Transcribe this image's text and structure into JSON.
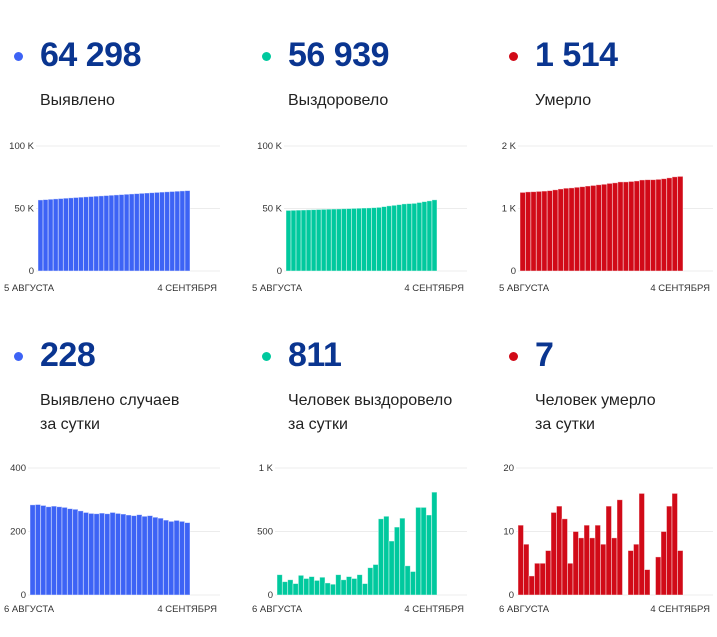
{
  "colors": {
    "cases": "#3d63f5",
    "recovered": "#00c99e",
    "deaths": "#d10a18",
    "number": "#0a3590"
  },
  "cards": [
    {
      "id": "total-cases",
      "value": "64 298",
      "label": "Выявлено",
      "color": "#3d63f5"
    },
    {
      "id": "total-recovered",
      "value": "56 939",
      "label": "Выздоровело",
      "color": "#00c99e"
    },
    {
      "id": "total-deaths",
      "value": "1 514",
      "label": "Умерло",
      "color": "#d10a18"
    },
    {
      "id": "daily-cases",
      "value": "228",
      "label": "Выявлено случаев",
      "label2": "за сутки",
      "color": "#3d63f5"
    },
    {
      "id": "daily-recovered",
      "value": "811",
      "label": "Человек выздоровело",
      "label2": "за сутки",
      "color": "#00c99e"
    },
    {
      "id": "daily-deaths",
      "value": "7",
      "label": "Человек умерло",
      "label2": "за сутки",
      "color": "#d10a18"
    }
  ],
  "chart_data": [
    {
      "type": "bar",
      "x_start": "5 АВГУСТА",
      "x_end": "4 СЕНТЯБРЯ",
      "ylim": [
        0,
        100000
      ],
      "yticks": [
        {
          "v": 0,
          "t": "0"
        },
        {
          "v": 50000,
          "t": "50 K"
        },
        {
          "v": 100000,
          "t": "100 K"
        }
      ],
      "grid": true,
      "values": [
        56850,
        57135,
        57417,
        57695,
        57975,
        58253,
        58529,
        58801,
        59071,
        59336,
        59596,
        59853,
        60109,
        60367,
        60623,
        60883,
        61140,
        61395,
        61647,
        61897,
        62150,
        62398,
        62648,
        62893,
        63135,
        63371,
        63603,
        63838,
        64070,
        64298
      ]
    },
    {
      "type": "bar",
      "x_start": "5 АВГУСТА",
      "x_end": "4 СЕНТЯБРЯ",
      "ylim": [
        0,
        100000
      ],
      "yticks": [
        {
          "v": 0,
          "t": "0"
        },
        {
          "v": 50000,
          "t": "50 K"
        },
        {
          "v": 100000,
          "t": "100 K"
        }
      ],
      "grid": true,
      "values": [
        48479,
        48584,
        48704,
        48794,
        48949,
        49079,
        49224,
        49339,
        49479,
        49574,
        49659,
        49819,
        49939,
        50084,
        50214,
        50374,
        50464,
        50679,
        50919,
        51519,
        52139,
        52564,
        53099,
        53704,
        53934,
        54119,
        54809,
        55499,
        56129,
        56939
      ]
    },
    {
      "type": "bar",
      "x_start": "5 АВГУСТА",
      "x_end": "4 СЕНТЯБРЯ",
      "ylim": [
        0,
        2000
      ],
      "yticks": [
        {
          "v": 0,
          "t": "0"
        },
        {
          "v": 1000,
          "t": "1 K"
        },
        {
          "v": 2000,
          "t": "2 K"
        }
      ],
      "grid": true,
      "values": [
        1258,
        1266,
        1269,
        1274,
        1279,
        1286,
        1299,
        1313,
        1325,
        1330,
        1340,
        1349,
        1360,
        1369,
        1380,
        1388,
        1402,
        1411,
        1426,
        1426,
        1433,
        1441,
        1457,
        1461,
        1461,
        1467,
        1477,
        1491,
        1507,
        1514
      ]
    },
    {
      "type": "bar",
      "x_start": "6 АВГУСТА",
      "x_end": "4 СЕНТЯБРЯ",
      "ylim": [
        0,
        400
      ],
      "yticks": [
        {
          "v": 0,
          "t": "0"
        },
        {
          "v": 200,
          "t": "200"
        },
        {
          "v": 400,
          "t": "400"
        }
      ],
      "grid": true,
      "values": [
        284,
        285,
        282,
        278,
        280,
        278,
        276,
        272,
        270,
        265,
        260,
        257,
        256,
        258,
        256,
        260,
        257,
        255,
        252,
        250,
        253,
        248,
        250,
        245,
        242,
        236,
        232,
        235,
        232,
        228
      ]
    },
    {
      "type": "bar",
      "x_start": "6 АВГУСТА",
      "x_end": "4 СЕНТЯБРЯ",
      "ylim": [
        0,
        1000
      ],
      "yticks": [
        {
          "v": 0,
          "t": "0"
        },
        {
          "v": 500,
          "t": "500"
        },
        {
          "v": 1000,
          "t": "1 K"
        }
      ],
      "grid": true,
      "values": [
        160,
        105,
        120,
        90,
        155,
        130,
        145,
        115,
        140,
        95,
        85,
        160,
        120,
        145,
        130,
        160,
        90,
        215,
        240,
        600,
        620,
        425,
        535,
        605,
        230,
        185,
        690,
        690,
        630,
        810
      ]
    },
    {
      "type": "bar",
      "x_start": "6 АВГУСТА",
      "x_end": "4 СЕНТЯБРЯ",
      "ylim": [
        0,
        20
      ],
      "yticks": [
        {
          "v": 0,
          "t": "0"
        },
        {
          "v": 10,
          "t": "10"
        },
        {
          "v": 20,
          "t": "20"
        }
      ],
      "grid": true,
      "values": [
        11,
        8,
        3,
        5,
        5,
        7,
        13,
        14,
        12,
        5,
        10,
        9,
        11,
        9,
        11,
        8,
        14,
        9,
        15,
        0,
        7,
        8,
        16,
        4,
        0,
        6,
        10,
        14,
        16,
        7
      ]
    }
  ]
}
